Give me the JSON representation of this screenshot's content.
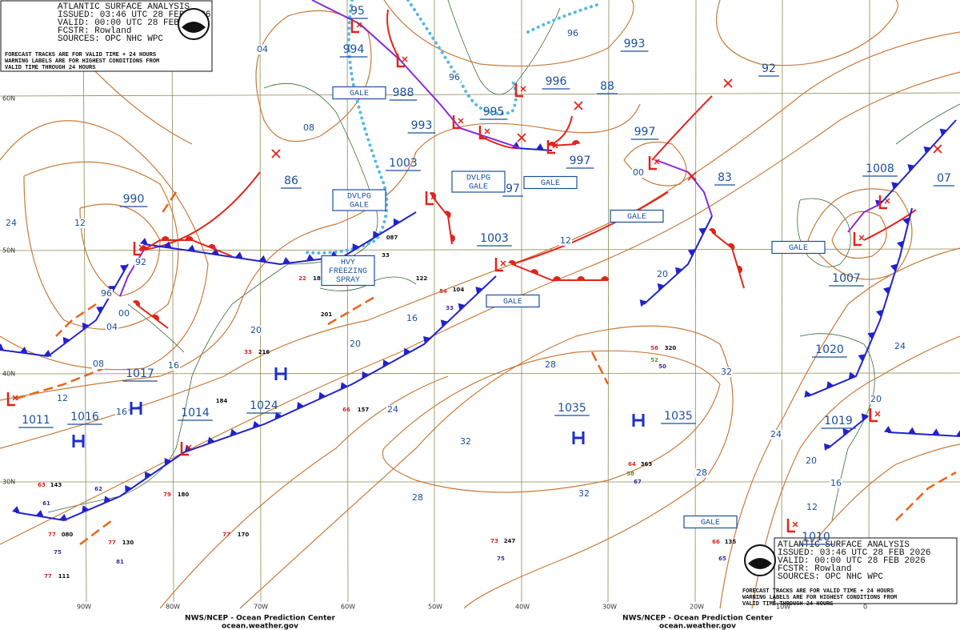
{
  "header": {
    "title": "ATLANTIC SURFACE ANALYSIS",
    "issued": "ISSUED: 03:46 UTC 28 FEB 2026",
    "valid": "VALID: 00:00 UTC 28 FEB 2026",
    "forecaster": "FCSTR: Rowland",
    "sources": "SOURCES: OPC NHC WPC",
    "note": [
      "FORECAST TRACKS ARE FOR VALID TIME + 24 HOURS",
      "WARNING LABELS ARE FOR HIGHEST CONDITIONS FROM",
      "VALID TIME THROUGH 24 HOURS"
    ]
  },
  "footer": {
    "center": "NWS/NCEP - Ocean Prediction Center",
    "url": "ocean.weather.gov"
  },
  "center_labels": [
    "95",
    "994",
    "988",
    "993",
    "995",
    "996",
    "88",
    "993",
    "92",
    "997",
    "997",
    "1003",
    "97",
    "86",
    "990",
    "1003",
    "83",
    "1008",
    "07",
    "1007",
    "1017",
    "1011",
    "1016",
    "1014",
    "1024",
    "1035",
    "1035",
    "1020",
    "1019",
    "1010"
  ],
  "isobar_labels": [
    "24",
    "12",
    "04",
    "08",
    "96",
    "96",
    "00",
    "92",
    "00",
    "96",
    "04",
    "08",
    "16",
    "12",
    "16",
    "20",
    "20",
    "16",
    "12",
    "20",
    "28",
    "32",
    "24",
    "32",
    "32",
    "28",
    "28",
    "24",
    "24",
    "20",
    "20",
    "16",
    "12"
  ],
  "warnings": [
    [
      "GALE"
    ],
    [
      "DVLPG",
      "GALE"
    ],
    [
      "DVLPG",
      "GALE"
    ],
    [
      "GALE"
    ],
    [
      "GALE"
    ],
    [
      "HVY",
      "FREEZING",
      "SPRAY"
    ],
    [
      "GALE"
    ],
    [
      "GALE"
    ],
    [
      "GALE"
    ]
  ],
  "latitudes": [
    "60N",
    "50N",
    "40N",
    "30N"
  ],
  "longitudes": [
    "90W",
    "80W",
    "70W",
    "60W",
    "50W",
    "40W",
    "30W",
    "20W",
    "10W",
    "0"
  ],
  "station_obs": [
    "087",
    "33",
    "122",
    "104",
    "54",
    "33",
    "22",
    "18",
    "33",
    "216",
    "184",
    "66",
    "157",
    "56",
    "320",
    "52",
    "50",
    "64",
    "363",
    "58",
    "67",
    "63",
    "143",
    "62",
    "61",
    "77",
    "080",
    "75",
    "77",
    "130",
    "81",
    "77",
    "111",
    "79",
    "180",
    "77",
    "170",
    "73",
    "247",
    "75",
    "66",
    "135",
    "65",
    "201"
  ]
}
